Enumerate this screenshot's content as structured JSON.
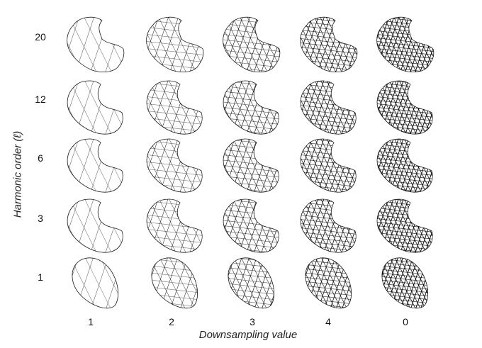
{
  "figure": {
    "y_axis_title": "Harmonic order (ℓ)",
    "x_axis_title": "Downsampling value",
    "row_labels": [
      "20",
      "12",
      "6",
      "3",
      "1"
    ],
    "column_labels": [
      "1",
      "2",
      "3",
      "4",
      "0"
    ]
  },
  "shapes": {
    "rows": [
      {
        "order": "20",
        "shape": "kidney-rough",
        "icon": "wireframe-mesh"
      },
      {
        "order": "12",
        "shape": "kidney",
        "icon": "wireframe-mesh"
      },
      {
        "order": "6",
        "shape": "kidney-smooth",
        "icon": "wireframe-mesh"
      },
      {
        "order": "3",
        "shape": "bean",
        "icon": "wireframe-mesh"
      },
      {
        "order": "1",
        "shape": "ellipsoid",
        "icon": "wireframe-mesh"
      }
    ],
    "mesh_density_by_column": [
      1,
      2,
      3,
      4,
      5
    ],
    "stroke_color": "#000000"
  }
}
